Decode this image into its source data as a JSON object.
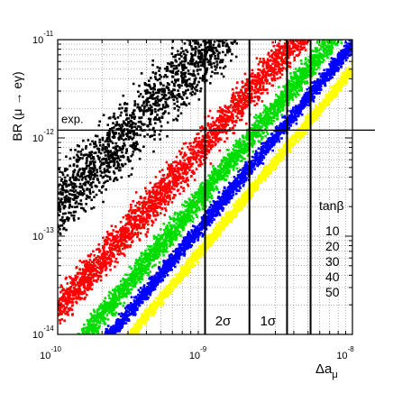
{
  "chart_data": {
    "type": "scatter",
    "xlabel": "Δa",
    "xlabel_sub": "μ",
    "ylabel": "BR (μ → eγ)",
    "x_scale": "log",
    "y_scale": "log",
    "xlim": [
      1e-10,
      1e-08
    ],
    "ylim": [
      1e-14,
      1e-11
    ],
    "x_ticks": [
      {
        "value": 1e-10,
        "base": "10",
        "exp": "-10"
      },
      {
        "value": 1e-09,
        "base": "10",
        "exp": "-9"
      },
      {
        "value": 1e-08,
        "base": "10",
        "exp": "-8"
      }
    ],
    "y_ticks": [
      {
        "value": 1e-11,
        "base": "10",
        "exp": "-11"
      },
      {
        "value": 1e-12,
        "base": "10",
        "exp": "-12"
      },
      {
        "value": 1e-13,
        "base": "10",
        "exp": "-13"
      },
      {
        "value": 1e-14,
        "base": "10",
        "exp": "-14"
      }
    ],
    "grid": true,
    "legend_title": "tanβ",
    "legend_position": "right",
    "series": [
      {
        "name": "10",
        "color": "#000000",
        "slope": 1.6,
        "center_log_y_at_log_x_-9.5": -11.9,
        "half_width_log_y": 0.55
      },
      {
        "name": "20",
        "color": "#ff0000",
        "slope": 1.7,
        "center_log_y_at_log_x_-9.5": -12.9,
        "half_width_log_y": 0.3
      },
      {
        "name": "30",
        "color": "#00dd00",
        "slope": 1.8,
        "center_log_y_at_log_x_-9.5": -13.45,
        "half_width_log_y": 0.2
      },
      {
        "name": "40",
        "color": "#0000ff",
        "slope": 1.8,
        "center_log_y_at_log_x_-9.5": -13.75,
        "half_width_log_y": 0.13
      },
      {
        "name": "50",
        "color": "#ffff00",
        "slope": 1.8,
        "center_log_y_at_log_x_-9.5": -14.0,
        "half_width_log_y": 0.1
      }
    ],
    "annotations": [
      {
        "type": "hline",
        "y": 1.2e-12,
        "text": "exp."
      },
      {
        "type": "vline",
        "x": 1e-09,
        "text": ""
      },
      {
        "type": "vline",
        "x": 2e-09,
        "text": "2σ"
      },
      {
        "type": "vline",
        "x": 3.6e-09,
        "text": ""
      },
      {
        "type": "vline",
        "x": 5.2e-09,
        "text": "1σ"
      }
    ]
  }
}
